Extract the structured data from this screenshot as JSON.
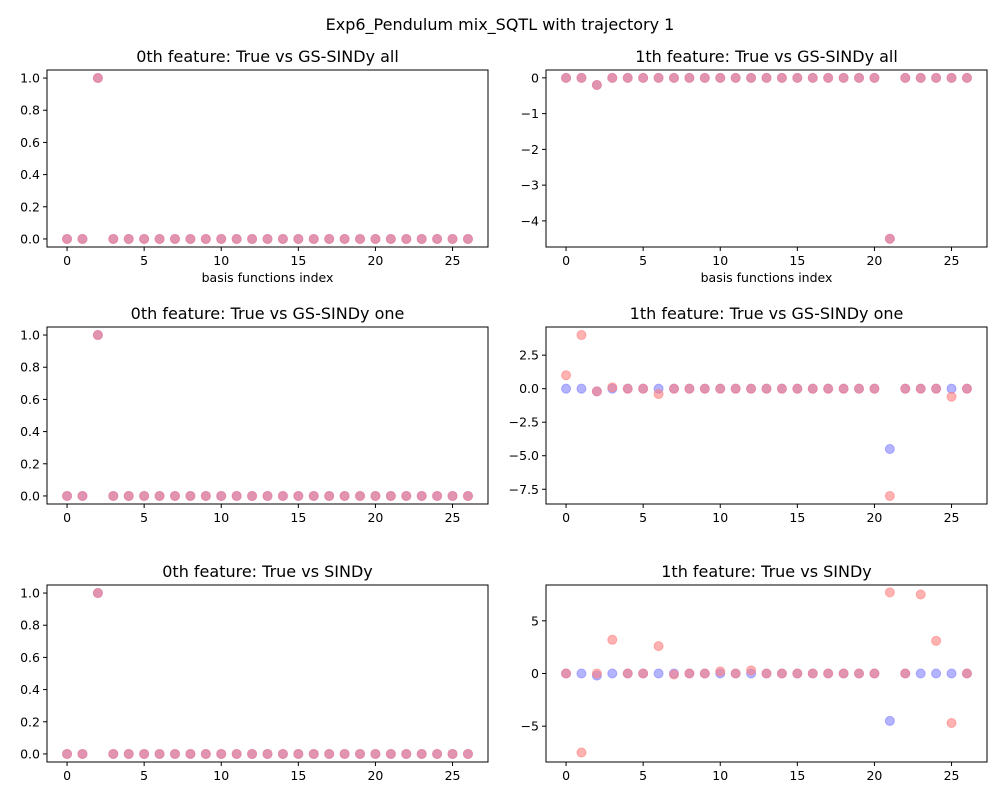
{
  "figure": {
    "suptitle": "Exp6_Pendulum mix_SQTL with trajectory 1",
    "colors": {
      "true": "#8080ff",
      "est": "#ff7f7f",
      "true_alpha": 0.6,
      "est_alpha": 0.6
    }
  },
  "chart_data": [
    {
      "type": "scatter",
      "title": "0th feature: True vs GS-SINDy all",
      "xlabel": "basis functions index",
      "ylabel": "",
      "xlim": [
        -1.3,
        27.3
      ],
      "ylim": [
        -0.05,
        1.05
      ],
      "xticks": [
        "0",
        "5",
        "10",
        "15",
        "20",
        "25"
      ],
      "yticks": [
        "0.0",
        "0.2",
        "0.4",
        "0.6",
        "0.8",
        "1.0"
      ],
      "series": [
        {
          "role": "true",
          "values": [
            0,
            0,
            1,
            0,
            0,
            0,
            0,
            0,
            0,
            0,
            0,
            0,
            0,
            0,
            0,
            0,
            0,
            0,
            0,
            0,
            0,
            0,
            0,
            0,
            0,
            0,
            0
          ]
        },
        {
          "role": "est",
          "values": [
            0,
            0,
            1,
            0,
            0,
            0,
            0,
            0,
            0,
            0,
            0,
            0,
            0,
            0,
            0,
            0,
            0,
            0,
            0,
            0,
            0,
            0,
            0,
            0,
            0,
            0,
            0
          ]
        }
      ]
    },
    {
      "type": "scatter",
      "title": "1th feature: True vs GS-SINDy all",
      "xlabel": "basis functions index",
      "ylabel": "",
      "xlim": [
        -1.3,
        27.3
      ],
      "ylim": [
        -4.73,
        0.22
      ],
      "xticks": [
        "0",
        "5",
        "10",
        "15",
        "20",
        "25"
      ],
      "yticks": [
        "−4",
        "−3",
        "−2",
        "−1",
        "0"
      ],
      "series": [
        {
          "role": "true",
          "values": [
            0,
            0,
            -0.2,
            0,
            0,
            0,
            0,
            0,
            0,
            0,
            0,
            0,
            0,
            0,
            0,
            0,
            0,
            0,
            0,
            0,
            0,
            -4.5,
            0,
            0,
            0,
            0,
            0
          ]
        },
        {
          "role": "est",
          "values": [
            0,
            0,
            -0.2,
            0,
            0,
            0,
            0,
            0,
            0,
            0,
            0,
            0,
            0,
            0,
            0,
            0,
            0,
            0,
            0,
            0,
            0,
            -4.5,
            0,
            0,
            0,
            0,
            0
          ]
        }
      ]
    },
    {
      "type": "scatter",
      "title": "0th feature: True vs GS-SINDy one",
      "xlabel": "",
      "ylabel": "",
      "xlim": [
        -1.3,
        27.3
      ],
      "ylim": [
        -0.05,
        1.05
      ],
      "xticks": [
        "0",
        "5",
        "10",
        "15",
        "20",
        "25"
      ],
      "yticks": [
        "0.0",
        "0.2",
        "0.4",
        "0.6",
        "0.8",
        "1.0"
      ],
      "series": [
        {
          "role": "true",
          "values": [
            0,
            0,
            1,
            0,
            0,
            0,
            0,
            0,
            0,
            0,
            0,
            0,
            0,
            0,
            0,
            0,
            0,
            0,
            0,
            0,
            0,
            0,
            0,
            0,
            0,
            0,
            0
          ]
        },
        {
          "role": "est",
          "values": [
            0,
            0,
            1,
            0,
            0,
            0,
            0,
            0,
            0,
            0,
            0,
            0,
            0,
            0,
            0,
            0,
            0,
            0,
            0,
            0,
            0,
            0,
            0,
            0,
            0,
            0,
            0
          ]
        }
      ]
    },
    {
      "type": "scatter",
      "title": "1th feature: True vs GS-SINDy one",
      "xlabel": "",
      "ylabel": "",
      "xlim": [
        -1.3,
        27.3
      ],
      "ylim": [
        -8.6,
        4.6
      ],
      "xticks": [
        "0",
        "5",
        "10",
        "15",
        "20",
        "25"
      ],
      "yticks": [
        "2.5",
        "0.0",
        "−2.5",
        "−5.0",
        "−7.5"
      ],
      "series": [
        {
          "role": "true",
          "values": [
            0,
            0,
            -0.2,
            0,
            0,
            0,
            0,
            0,
            0,
            0,
            0,
            0,
            0,
            0,
            0,
            0,
            0,
            0,
            0,
            0,
            0,
            -4.5,
            0,
            0,
            0,
            0,
            0
          ]
        },
        {
          "role": "est",
          "values": [
            1.0,
            4.0,
            -0.2,
            0.1,
            0,
            0,
            -0.4,
            0,
            0,
            0,
            0,
            0,
            0,
            0,
            0,
            0,
            0,
            0,
            0,
            0,
            0,
            -8.0,
            0,
            0,
            0,
            -0.6,
            0
          ]
        }
      ]
    },
    {
      "type": "scatter",
      "title": "0th feature: True vs SINDy",
      "xlabel": "",
      "ylabel": "",
      "xlim": [
        -1.3,
        27.3
      ],
      "ylim": [
        -0.05,
        1.05
      ],
      "xticks": [
        "0",
        "5",
        "10",
        "15",
        "20",
        "25"
      ],
      "yticks": [
        "0.0",
        "0.2",
        "0.4",
        "0.6",
        "0.8",
        "1.0"
      ],
      "series": [
        {
          "role": "true",
          "values": [
            0,
            0,
            1,
            0,
            0,
            0,
            0,
            0,
            0,
            0,
            0,
            0,
            0,
            0,
            0,
            0,
            0,
            0,
            0,
            0,
            0,
            0,
            0,
            0,
            0,
            0,
            0
          ]
        },
        {
          "role": "est",
          "values": [
            0,
            0,
            1,
            0,
            0,
            0,
            0,
            0,
            0,
            0,
            0,
            0,
            0,
            0,
            0,
            0,
            0,
            0,
            0,
            0,
            0,
            0,
            0,
            0,
            0,
            0,
            0
          ]
        }
      ]
    },
    {
      "type": "scatter",
      "title": "1th feature: True vs SINDy",
      "xlabel": "",
      "ylabel": "",
      "xlim": [
        -1.3,
        27.3
      ],
      "ylim": [
        -8.4,
        8.4
      ],
      "xticks": [
        "0",
        "5",
        "10",
        "15",
        "20",
        "25"
      ],
      "yticks": [
        "5",
        "0",
        "−5"
      ],
      "series": [
        {
          "role": "true",
          "values": [
            0,
            0,
            -0.2,
            0,
            0,
            0,
            0,
            0,
            0,
            0,
            0,
            0,
            0,
            0,
            0,
            0,
            0,
            0,
            0,
            0,
            0,
            -4.5,
            0,
            0,
            0,
            0,
            0
          ]
        },
        {
          "role": "est",
          "values": [
            0,
            -7.5,
            0,
            3.2,
            0,
            0,
            2.6,
            -0.1,
            0,
            0,
            0.2,
            0,
            0.3,
            0,
            0,
            0,
            0,
            0,
            0,
            0,
            0,
            7.7,
            0,
            7.5,
            3.1,
            -4.7,
            0
          ]
        }
      ]
    }
  ]
}
